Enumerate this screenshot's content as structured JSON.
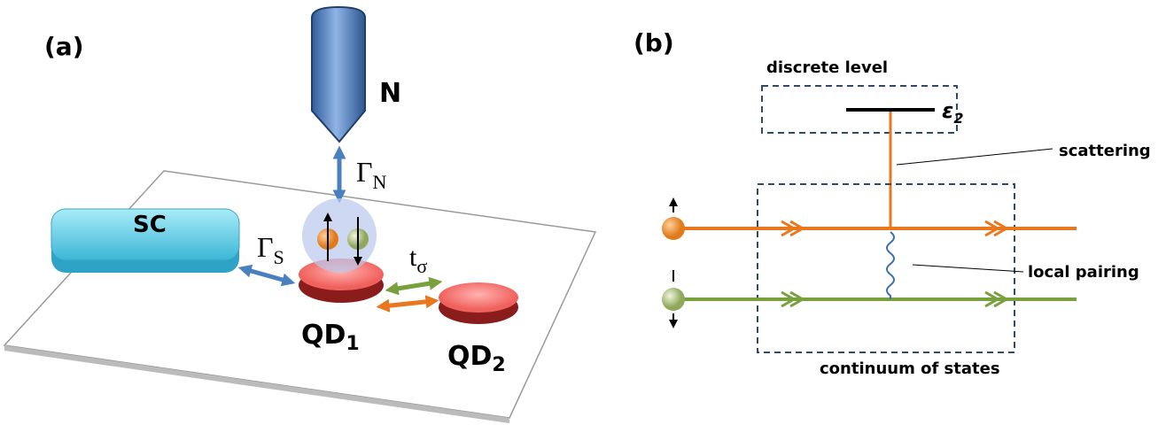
{
  "panel_a": {
    "label": "(a)",
    "tip": "N",
    "gamma_n": {
      "base": "Γ",
      "sub": "N"
    },
    "sc": "SC",
    "gamma_s": {
      "base": "Γ",
      "sub": "S"
    },
    "t_sigma": {
      "base": "t",
      "sub": "σ"
    },
    "qd1": {
      "base": "QD",
      "sub": "1"
    },
    "qd2": {
      "base": "QD",
      "sub": "2"
    }
  },
  "panel_b": {
    "label": "(b)",
    "discrete_level": "discrete level",
    "epsilon": {
      "base": "ε",
      "sub": "2"
    },
    "scattering": "scattering",
    "local_pairing": "local pairing",
    "continuum": "continuum of states"
  }
}
